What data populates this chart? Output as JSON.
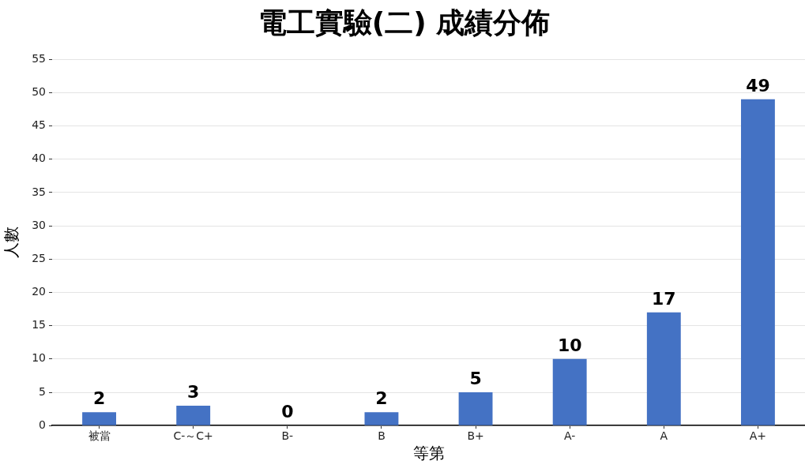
{
  "chart_data": {
    "type": "bar",
    "title": "電工實驗(二) 成績分佈",
    "xlabel": "等第",
    "ylabel": "人數",
    "categories": [
      "被當",
      "C-～C+",
      "B-",
      "B",
      "B+",
      "A-",
      "A",
      "A+"
    ],
    "values": [
      2,
      3,
      0,
      2,
      5,
      10,
      17,
      49
    ],
    "color": "#4472c4",
    "ylim": [
      0,
      55
    ],
    "yticks": [
      0,
      5,
      10,
      15,
      20,
      25,
      30,
      35,
      40,
      45,
      50,
      55
    ],
    "grid": "y",
    "data_labels": true
  }
}
